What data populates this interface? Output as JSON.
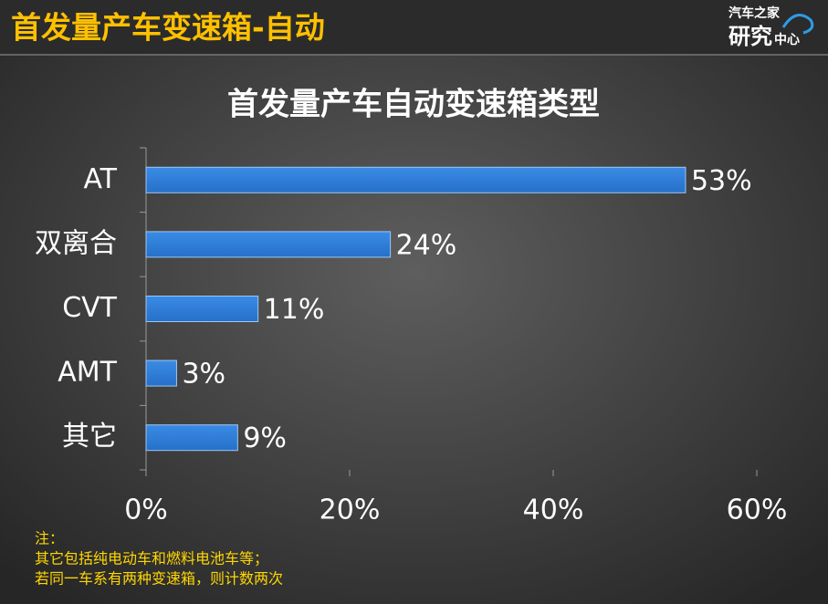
{
  "header": {
    "title": "首发量产车变速箱-自动",
    "logo": [
      "汽车之家",
      "研究",
      "中心"
    ]
  },
  "chart_data": {
    "type": "bar",
    "orientation": "horizontal",
    "title": "首发量产车自动变速箱类型",
    "categories": [
      "AT",
      "双离合",
      "CVT",
      "AMT",
      "其它"
    ],
    "values": [
      53,
      24,
      11,
      3,
      9
    ],
    "value_labels": [
      "53%",
      "24%",
      "11%",
      "3%",
      "9%"
    ],
    "color": "#2f7ed8",
    "xlim": [
      0,
      60
    ],
    "xticks": [
      {
        "value": 0,
        "label": "0%"
      },
      {
        "value": 20,
        "label": "20%"
      },
      {
        "value": 40,
        "label": "40%"
      },
      {
        "value": 60,
        "label": "60%"
      }
    ],
    "grid": false
  },
  "notes": [
    "注：",
    "其它包括纯电动车和燃料电池车等；",
    "若同一车系有两种变速箱，则计数两次"
  ]
}
